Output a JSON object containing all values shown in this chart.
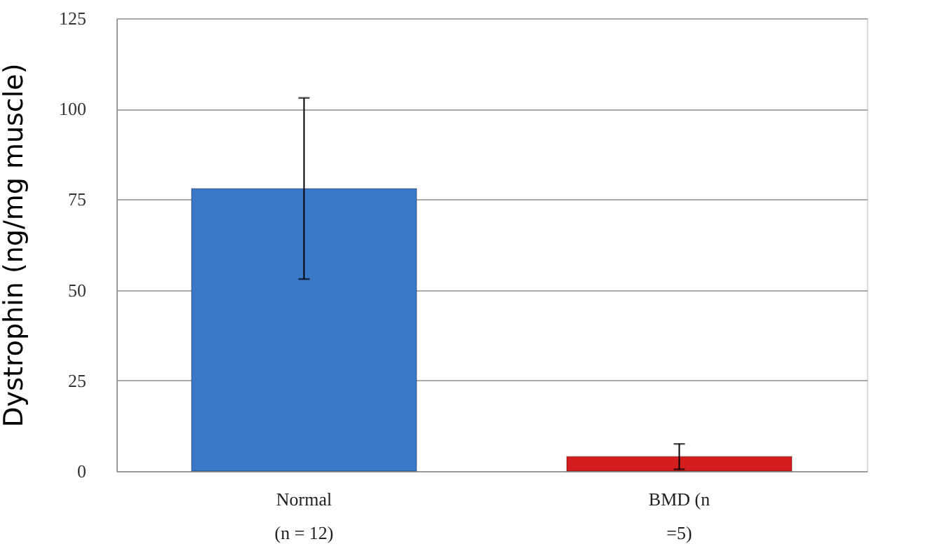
{
  "chart_data": {
    "type": "bar",
    "ylabel": "Dystrophin (ng/mg muscle)",
    "categories": [
      "Normal\n\n(n = 12)",
      "BMD (n\n\n=5)"
    ],
    "values": [
      78,
      4
    ],
    "errors": [
      25,
      3.5
    ],
    "colors": [
      "#3a78c8",
      "#d41e1e"
    ],
    "ylim": [
      0,
      125
    ],
    "yticks": [
      0,
      25,
      50,
      75,
      100,
      125
    ],
    "grid": "y"
  }
}
